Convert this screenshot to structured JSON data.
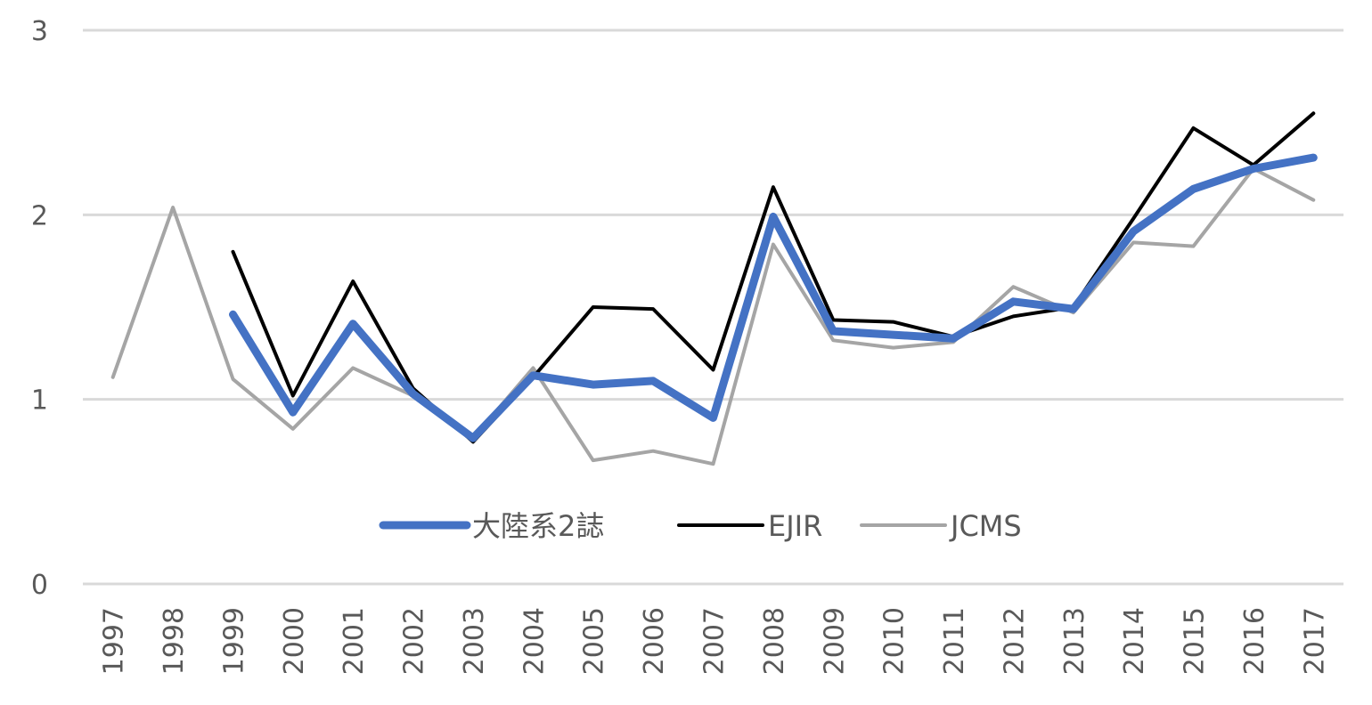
{
  "chart_data": {
    "type": "line",
    "title": "",
    "xlabel": "",
    "ylabel": "",
    "x": [
      "1997",
      "1998",
      "1999",
      "2000",
      "2001",
      "2002",
      "2003",
      "2004",
      "2005",
      "2006",
      "2007",
      "2008",
      "2009",
      "2010",
      "2011",
      "2012",
      "2013",
      "2014",
      "2015",
      "2016",
      "2017"
    ],
    "ylim": [
      0,
      3
    ],
    "yticks": [
      0,
      1,
      2,
      3
    ],
    "grid": true,
    "legend_position": "inside-bottom-center",
    "series": [
      {
        "name": "大陸系2誌",
        "color": "#4472C4",
        "values": [
          null,
          null,
          1.46,
          0.93,
          1.41,
          1.03,
          0.79,
          1.13,
          1.08,
          1.1,
          0.9,
          1.99,
          1.37,
          1.35,
          1.33,
          1.53,
          1.49,
          1.91,
          2.14,
          2.25,
          2.31
        ]
      },
      {
        "name": "EJIR",
        "color": "#000000",
        "values": [
          null,
          null,
          1.8,
          1.02,
          1.64,
          1.06,
          0.77,
          1.12,
          1.5,
          1.49,
          1.16,
          2.15,
          1.43,
          1.42,
          1.34,
          1.45,
          1.5,
          1.98,
          2.47,
          2.27,
          2.55
        ]
      },
      {
        "name": "JCMS",
        "color": "#A5A5A5",
        "values": [
          1.12,
          2.04,
          1.11,
          0.84,
          1.17,
          1.02,
          0.79,
          1.17,
          0.67,
          0.72,
          0.65,
          1.84,
          1.32,
          1.28,
          1.31,
          1.61,
          1.47,
          1.85,
          1.83,
          2.25,
          2.08
        ]
      }
    ]
  }
}
